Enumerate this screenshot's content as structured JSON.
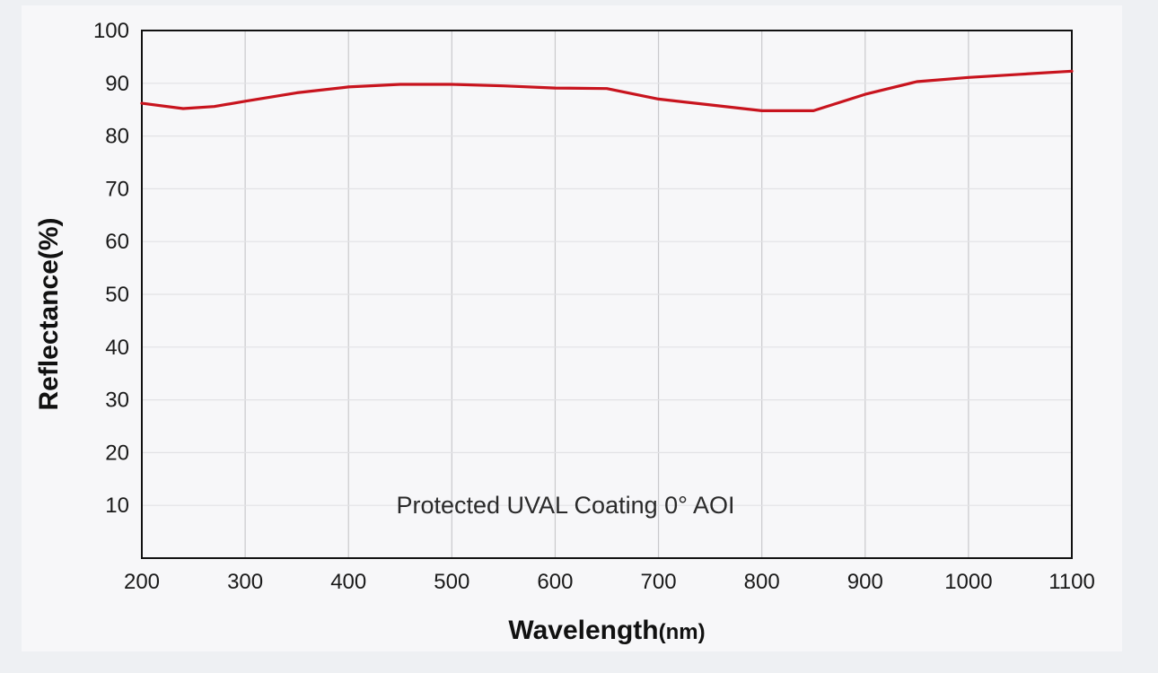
{
  "chart_data": {
    "type": "line",
    "title": "",
    "xlabel": "Wavelength",
    "xlabel_unit": "(nm)",
    "ylabel": "Reflectance(%)",
    "xlim": [
      200,
      1100
    ],
    "ylim": [
      0,
      100
    ],
    "xticks": [
      200,
      300,
      400,
      500,
      600,
      700,
      800,
      900,
      1000,
      1100
    ],
    "yticks": [
      10,
      20,
      30,
      40,
      50,
      60,
      70,
      80,
      90,
      100
    ],
    "grid": true,
    "annotation": "Protected UVAL Coating  0°  AOI",
    "series": [
      {
        "name": "Protected UVAL Coating 0° AOI",
        "color": "#c8141e",
        "x": [
          200,
          240,
          270,
          300,
          350,
          400,
          450,
          500,
          550,
          600,
          650,
          700,
          750,
          800,
          850,
          900,
          950,
          1000,
          1050,
          1100
        ],
        "y": [
          86.2,
          85.2,
          85.6,
          86.6,
          88.2,
          89.3,
          89.8,
          89.8,
          89.5,
          89.1,
          89.0,
          87.0,
          85.9,
          84.8,
          84.8,
          87.9,
          90.3,
          91.1,
          91.7,
          92.3
        ]
      }
    ]
  }
}
